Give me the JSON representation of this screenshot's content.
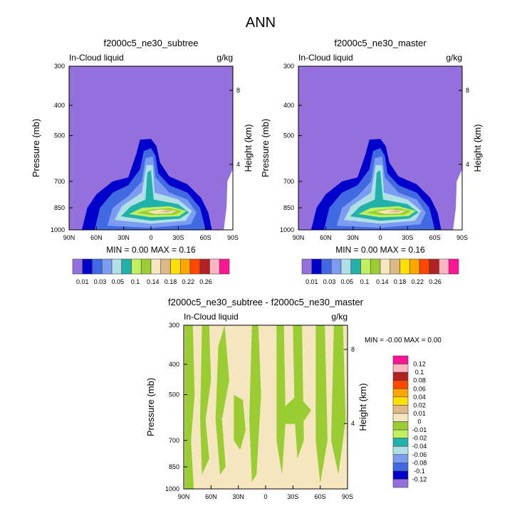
{
  "title": "ANN",
  "colors": {
    "top_levels": [
      "#9370DB",
      "#0000CD",
      "#4169E1",
      "#7B9CF0",
      "#B0E0E6",
      "#20B2AA",
      "#C0F060",
      "#9ACD32",
      "#F5E6C0",
      "#DEB887",
      "#FFE000",
      "#FFA500",
      "#FF4500",
      "#B22222",
      "#FFB6C1",
      "#FF1493"
    ],
    "diff_levels": [
      "#FF1493",
      "#FFB6C1",
      "#B22222",
      "#FF4500",
      "#FFA500",
      "#FFE000",
      "#DEB887",
      "#F5E6C0",
      "#9ACD32",
      "#C0F060",
      "#20B2AA",
      "#B0E0E6",
      "#7B9CF0",
      "#4169E1",
      "#0000CD",
      "#9370DB"
    ]
  },
  "chart_data": [
    {
      "type": "heatmap",
      "title": "f2000c5_ne30_subtree",
      "left_label": "In-Cloud liquid",
      "right_label": "g/kg",
      "ylabel": "Pressure (mb)",
      "ylabel_right": "Height (km)",
      "xticks": [
        "90N",
        "60N",
        "30N",
        "0",
        "30S",
        "60S",
        "90S"
      ],
      "yticks": [
        300,
        400,
        500,
        700,
        850,
        1000
      ],
      "yticks_right": [
        "8",
        "4"
      ],
      "stats": "MIN =   0.00  MAX =   0.16",
      "colorbar_labels": [
        "0.01",
        "0.03",
        "0.05",
        "0.1",
        "0.14",
        "0.18",
        "0.22",
        "0.26"
      ]
    },
    {
      "type": "heatmap",
      "title": "f2000c5_ne30_master",
      "left_label": "In-Cloud liquid",
      "right_label": "g/kg",
      "ylabel": "Pressure (mb)",
      "ylabel_right": "Height (km)",
      "xticks": [
        "90N",
        "60N",
        "30N",
        "0",
        "30S",
        "60S",
        "90S"
      ],
      "yticks": [
        300,
        400,
        500,
        700,
        850,
        1000
      ],
      "yticks_right": [
        "8",
        "4"
      ],
      "stats": "MIN =   0.00  MAX =   0.16",
      "colorbar_labels": [
        "0.01",
        "0.03",
        "0.05",
        "0.1",
        "0.14",
        "0.18",
        "0.22",
        "0.26"
      ]
    },
    {
      "type": "heatmap",
      "title": "f2000c5_ne30_subtree - f2000c5_ne30_master",
      "left_label": "In-Cloud liquid",
      "right_label": "g/kg",
      "ylabel": "Pressure (mb)",
      "ylabel_right": "Height (km)",
      "xticks": [
        "90N",
        "60N",
        "30N",
        "0",
        "30S",
        "60S",
        "90S"
      ],
      "yticks": [
        300,
        400,
        500,
        700,
        850,
        1000
      ],
      "yticks_right": [
        "8",
        "4"
      ],
      "stats": "MIN =  -0.00  MAX =   0.00",
      "colorbar_labels": [
        "0.12",
        "0.1",
        "0.08",
        "0.06",
        "0.04",
        "0.02",
        "0.01",
        "0",
        "-0.01",
        "-0.02",
        "-0.04",
        "-0.06",
        "-0.08",
        "-0.1",
        "-0.12"
      ]
    }
  ],
  "contours_lat_p": [
    {
      "level": 1,
      "pts": [
        [
          76,
          1000
        ],
        [
          70,
          850
        ],
        [
          60,
          770
        ],
        [
          42,
          700
        ],
        [
          25,
          680
        ],
        [
          16,
          570
        ],
        [
          12,
          515
        ],
        [
          0,
          512
        ],
        [
          -6,
          540
        ],
        [
          -10,
          610
        ],
        [
          -20,
          675
        ],
        [
          -40,
          715
        ],
        [
          -55,
          790
        ],
        [
          -63,
          880
        ],
        [
          -67,
          1000
        ]
      ]
    },
    {
      "level": 2,
      "pts": [
        [
          62,
          1000
        ],
        [
          56,
          850
        ],
        [
          42,
          760
        ],
        [
          25,
          720
        ],
        [
          12,
          640
        ],
        [
          8,
          560
        ],
        [
          0,
          548
        ],
        [
          -5,
          580
        ],
        [
          -8,
          660
        ],
        [
          -20,
          720
        ],
        [
          -40,
          760
        ],
        [
          -54,
          850
        ],
        [
          -60,
          1000
        ]
      ]
    },
    {
      "level": 3,
      "pts": [
        [
          48,
          970
        ],
        [
          42,
          850
        ],
        [
          25,
          780
        ],
        [
          10,
          700
        ],
        [
          6,
          590
        ],
        [
          -2,
          582
        ],
        [
          -5,
          680
        ],
        [
          -20,
          760
        ],
        [
          -40,
          800
        ],
        [
          -50,
          880
        ],
        [
          -44,
          960
        ],
        [
          0,
          985
        ]
      ]
    },
    {
      "level": 4,
      "pts": [
        [
          40,
          930
        ],
        [
          32,
          840
        ],
        [
          10,
          760
        ],
        [
          5,
          620
        ],
        [
          -2,
          622
        ],
        [
          -4,
          760
        ],
        [
          -30,
          800
        ],
        [
          -45,
          870
        ],
        [
          -38,
          935
        ],
        [
          0,
          955
        ]
      ]
    },
    {
      "level": 5,
      "pts": [
        [
          33,
          905
        ],
        [
          22,
          840
        ],
        [
          6,
          800
        ],
        [
          4,
          655
        ],
        [
          0,
          645
        ],
        [
          -3,
          800
        ],
        [
          -30,
          828
        ],
        [
          -42,
          880
        ],
        [
          -32,
          920
        ],
        [
          0,
          935
        ]
      ]
    },
    {
      "level": 6,
      "pts": [
        [
          24,
          890
        ],
        [
          10,
          850
        ],
        [
          -20,
          840
        ],
        [
          -39,
          870
        ],
        [
          -31,
          905
        ],
        [
          0,
          912
        ]
      ]
    },
    {
      "level": 7,
      "pts": [
        [
          16,
          882
        ],
        [
          0,
          862
        ],
        [
          -20,
          852
        ],
        [
          -34,
          870
        ],
        [
          -26,
          895
        ],
        [
          0,
          897
        ]
      ]
    },
    {
      "level": 8,
      "pts": [
        [
          5,
          875
        ],
        [
          -10,
          861
        ],
        [
          -28,
          868
        ],
        [
          -22,
          886
        ],
        [
          -5,
          889
        ]
      ]
    },
    {
      "level": 9,
      "pts": [
        [
          -8,
          873
        ],
        [
          -18,
          865
        ],
        [
          -25,
          872
        ],
        [
          -18,
          880
        ]
      ]
    }
  ],
  "diff_patches_lat_p": [
    [
      [
        89,
        300
      ],
      [
        80,
        300
      ],
      [
        78,
        500
      ],
      [
        82,
        700
      ],
      [
        79,
        1000
      ],
      [
        89,
        1000
      ]
    ],
    [
      [
        70,
        300
      ],
      [
        62,
        300
      ],
      [
        60,
        450
      ],
      [
        66,
        600
      ],
      [
        62,
        800
      ],
      [
        70,
        900
      ],
      [
        72,
        600
      ]
    ],
    [
      [
        52,
        350
      ],
      [
        45,
        300
      ],
      [
        40,
        450
      ],
      [
        48,
        600
      ],
      [
        44,
        850
      ],
      [
        50,
        900
      ],
      [
        55,
        600
      ]
    ],
    [
      [
        35,
        500
      ],
      [
        25,
        520
      ],
      [
        22,
        650
      ],
      [
        28,
        750
      ],
      [
        35,
        700
      ]
    ],
    [
      [
        15,
        300
      ],
      [
        8,
        300
      ],
      [
        5,
        500
      ],
      [
        10,
        900
      ],
      [
        15,
        950
      ],
      [
        18,
        600
      ]
    ],
    [
      [
        -12,
        300
      ],
      [
        -20,
        300
      ],
      [
        -22,
        600
      ],
      [
        -18,
        900
      ],
      [
        -12,
        700
      ]
    ],
    [
      [
        -30,
        300
      ],
      [
        -40,
        300
      ],
      [
        -42,
        700
      ],
      [
        -35,
        800
      ],
      [
        -32,
        600
      ]
    ],
    [
      [
        -55,
        300
      ],
      [
        -65,
        300
      ],
      [
        -68,
        700
      ],
      [
        -60,
        960
      ],
      [
        -55,
        700
      ]
    ],
    [
      [
        -75,
        300
      ],
      [
        -85,
        300
      ],
      [
        -88,
        600
      ],
      [
        -80,
        900
      ],
      [
        -72,
        700
      ]
    ],
    [
      [
        -20,
        550
      ],
      [
        -35,
        500
      ],
      [
        -50,
        560
      ],
      [
        -40,
        620
      ],
      [
        -22,
        620
      ]
    ]
  ]
}
